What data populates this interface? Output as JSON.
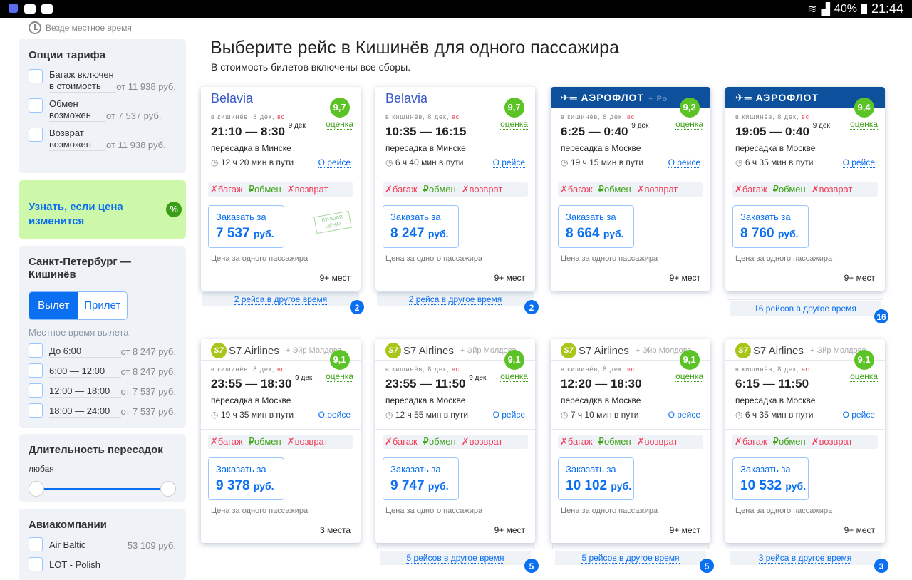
{
  "statusbar": {
    "battery": "40%",
    "time": "21:44"
  },
  "timezone": "Везде местное время",
  "filters": {
    "fare": {
      "title": "Опции тарифа",
      "options": [
        {
          "label": "Багаж включен в стоимость",
          "price": "от 11 938 руб."
        },
        {
          "label": "Обмен возможен",
          "price": "от 7 537 руб."
        },
        {
          "label": "Возврат возможен",
          "price": "от 11 938 руб."
        }
      ]
    },
    "alert": {
      "label": "Узнать, если цена изменится",
      "icon": "%"
    },
    "route": {
      "title": "Санкт-Петербург — Кишинёв",
      "tabs": [
        "Вылет",
        "Прилет"
      ],
      "active_tab": "Вылет",
      "subtitle": "Местное время вылета",
      "options": [
        {
          "label": "До 6:00",
          "price": "от 8 247 руб."
        },
        {
          "label": "6:00 — 12:00",
          "price": "от 8 247 руб."
        },
        {
          "label": "12:00 — 18:00",
          "price": "от 7 537 руб."
        },
        {
          "label": "18:00 — 24:00",
          "price": "от 7 537 руб."
        }
      ]
    },
    "layover": {
      "title": "Длительность пересадок",
      "value": "любая",
      "range": [
        0,
        1
      ]
    },
    "airlines": {
      "title": "Авиакомпании",
      "options": [
        {
          "label": "Air Baltic",
          "price": "53 109 руб."
        },
        {
          "label": "LOT - Polish",
          "price": ""
        }
      ]
    }
  },
  "main": {
    "title": "Выберите рейс в Кишинёв для одного пассажира",
    "subtitle": "В стоимость билетов включены все сборы."
  },
  "card_common": {
    "date_prefix": "в кишинёв, 8 дек, ",
    "date_day": "вс",
    "rating_label": "оценка",
    "about": "О рейсе",
    "baggage": "багаж",
    "exchange": "обмен",
    "refund": "возврат",
    "order_label": "Заказать за",
    "currency": "руб.",
    "note": "Цена за одного пассажира",
    "best_price": "ЛУЧШАЯ ЦЕНА!"
  },
  "flights": [
    {
      "airline": "Belavia",
      "partner": "",
      "rating": "9,7",
      "dep": "21:10",
      "arr": "8:30",
      "arr_date": "9 дек",
      "transfer": "пересадка в Минске",
      "duration": "12 ч 20 мин в пути",
      "price": "7 537",
      "seats": "9+ мест",
      "best": true,
      "more": "2 рейса в другое время",
      "more_count": "2"
    },
    {
      "airline": "Belavia",
      "partner": "",
      "rating": "9,7",
      "dep": "10:35",
      "arr": "16:15",
      "arr_date": "",
      "transfer": "пересадка в Минске",
      "duration": "6 ч 40 мин в пути",
      "price": "8 247",
      "seats": "9+ мест",
      "more": "2 рейса в другое время",
      "more_count": "2"
    },
    {
      "airline": "АЭРОФЛОТ",
      "partner": "+ Ро",
      "rating": "9,2",
      "dep": "6:25",
      "arr": "0:40",
      "arr_date": "9 дек",
      "transfer": "пересадка в Москве",
      "duration": "19 ч 15 мин в пути",
      "price": "8 664",
      "seats": "9+ мест"
    },
    {
      "airline": "АЭРОФЛОТ",
      "partner": "",
      "rating": "9,4",
      "dep": "19:05",
      "arr": "0:40",
      "arr_date": "9 дек",
      "transfer": "пересадка в Москве",
      "duration": "6 ч 35 мин в пути",
      "price": "8 760",
      "seats": "9+ мест",
      "more": "16 рейсов в другое время",
      "more_count": "16"
    },
    {
      "airline": "S7 Airlines",
      "partner": "+ Эйр Молдова",
      "rating": "9,1",
      "dep": "23:55",
      "arr": "18:30",
      "arr_date": "9 дек",
      "transfer": "пересадка в Москве",
      "duration": "19 ч 35 мин в пути",
      "price": "9 378",
      "seats": "3 места"
    },
    {
      "airline": "S7 Airlines",
      "partner": "+ Эйр Молдова",
      "rating": "9,1",
      "dep": "23:55",
      "arr": "11:50",
      "arr_date": "9 дек",
      "transfer": "пересадка в Москве",
      "duration": "12 ч 55 мин в пути",
      "price": "9 747",
      "seats": "9+ мест",
      "more": "5 рейсов в другое время",
      "more_count": "5"
    },
    {
      "airline": "S7 Airlines",
      "partner": "+ Эйр Молдова",
      "rating": "9,1",
      "dep": "12:20",
      "arr": "18:30",
      "arr_date": "",
      "transfer": "пересадка в Москве",
      "duration": "7 ч 10 мин в пути",
      "price": "10 102",
      "seats": "9+ мест",
      "more": "5 рейсов в другое время",
      "more_count": "5"
    },
    {
      "airline": "S7 Airlines",
      "partner": "+ Эйр Молдова",
      "rating": "9,1",
      "dep": "6:15",
      "arr": "11:50",
      "arr_date": "",
      "transfer": "пересадка в Москве",
      "duration": "6 ч 35 мин в пути",
      "price": "10 532",
      "seats": "9+ мест",
      "more": "3 рейса в другое время",
      "more_count": "3"
    }
  ]
}
